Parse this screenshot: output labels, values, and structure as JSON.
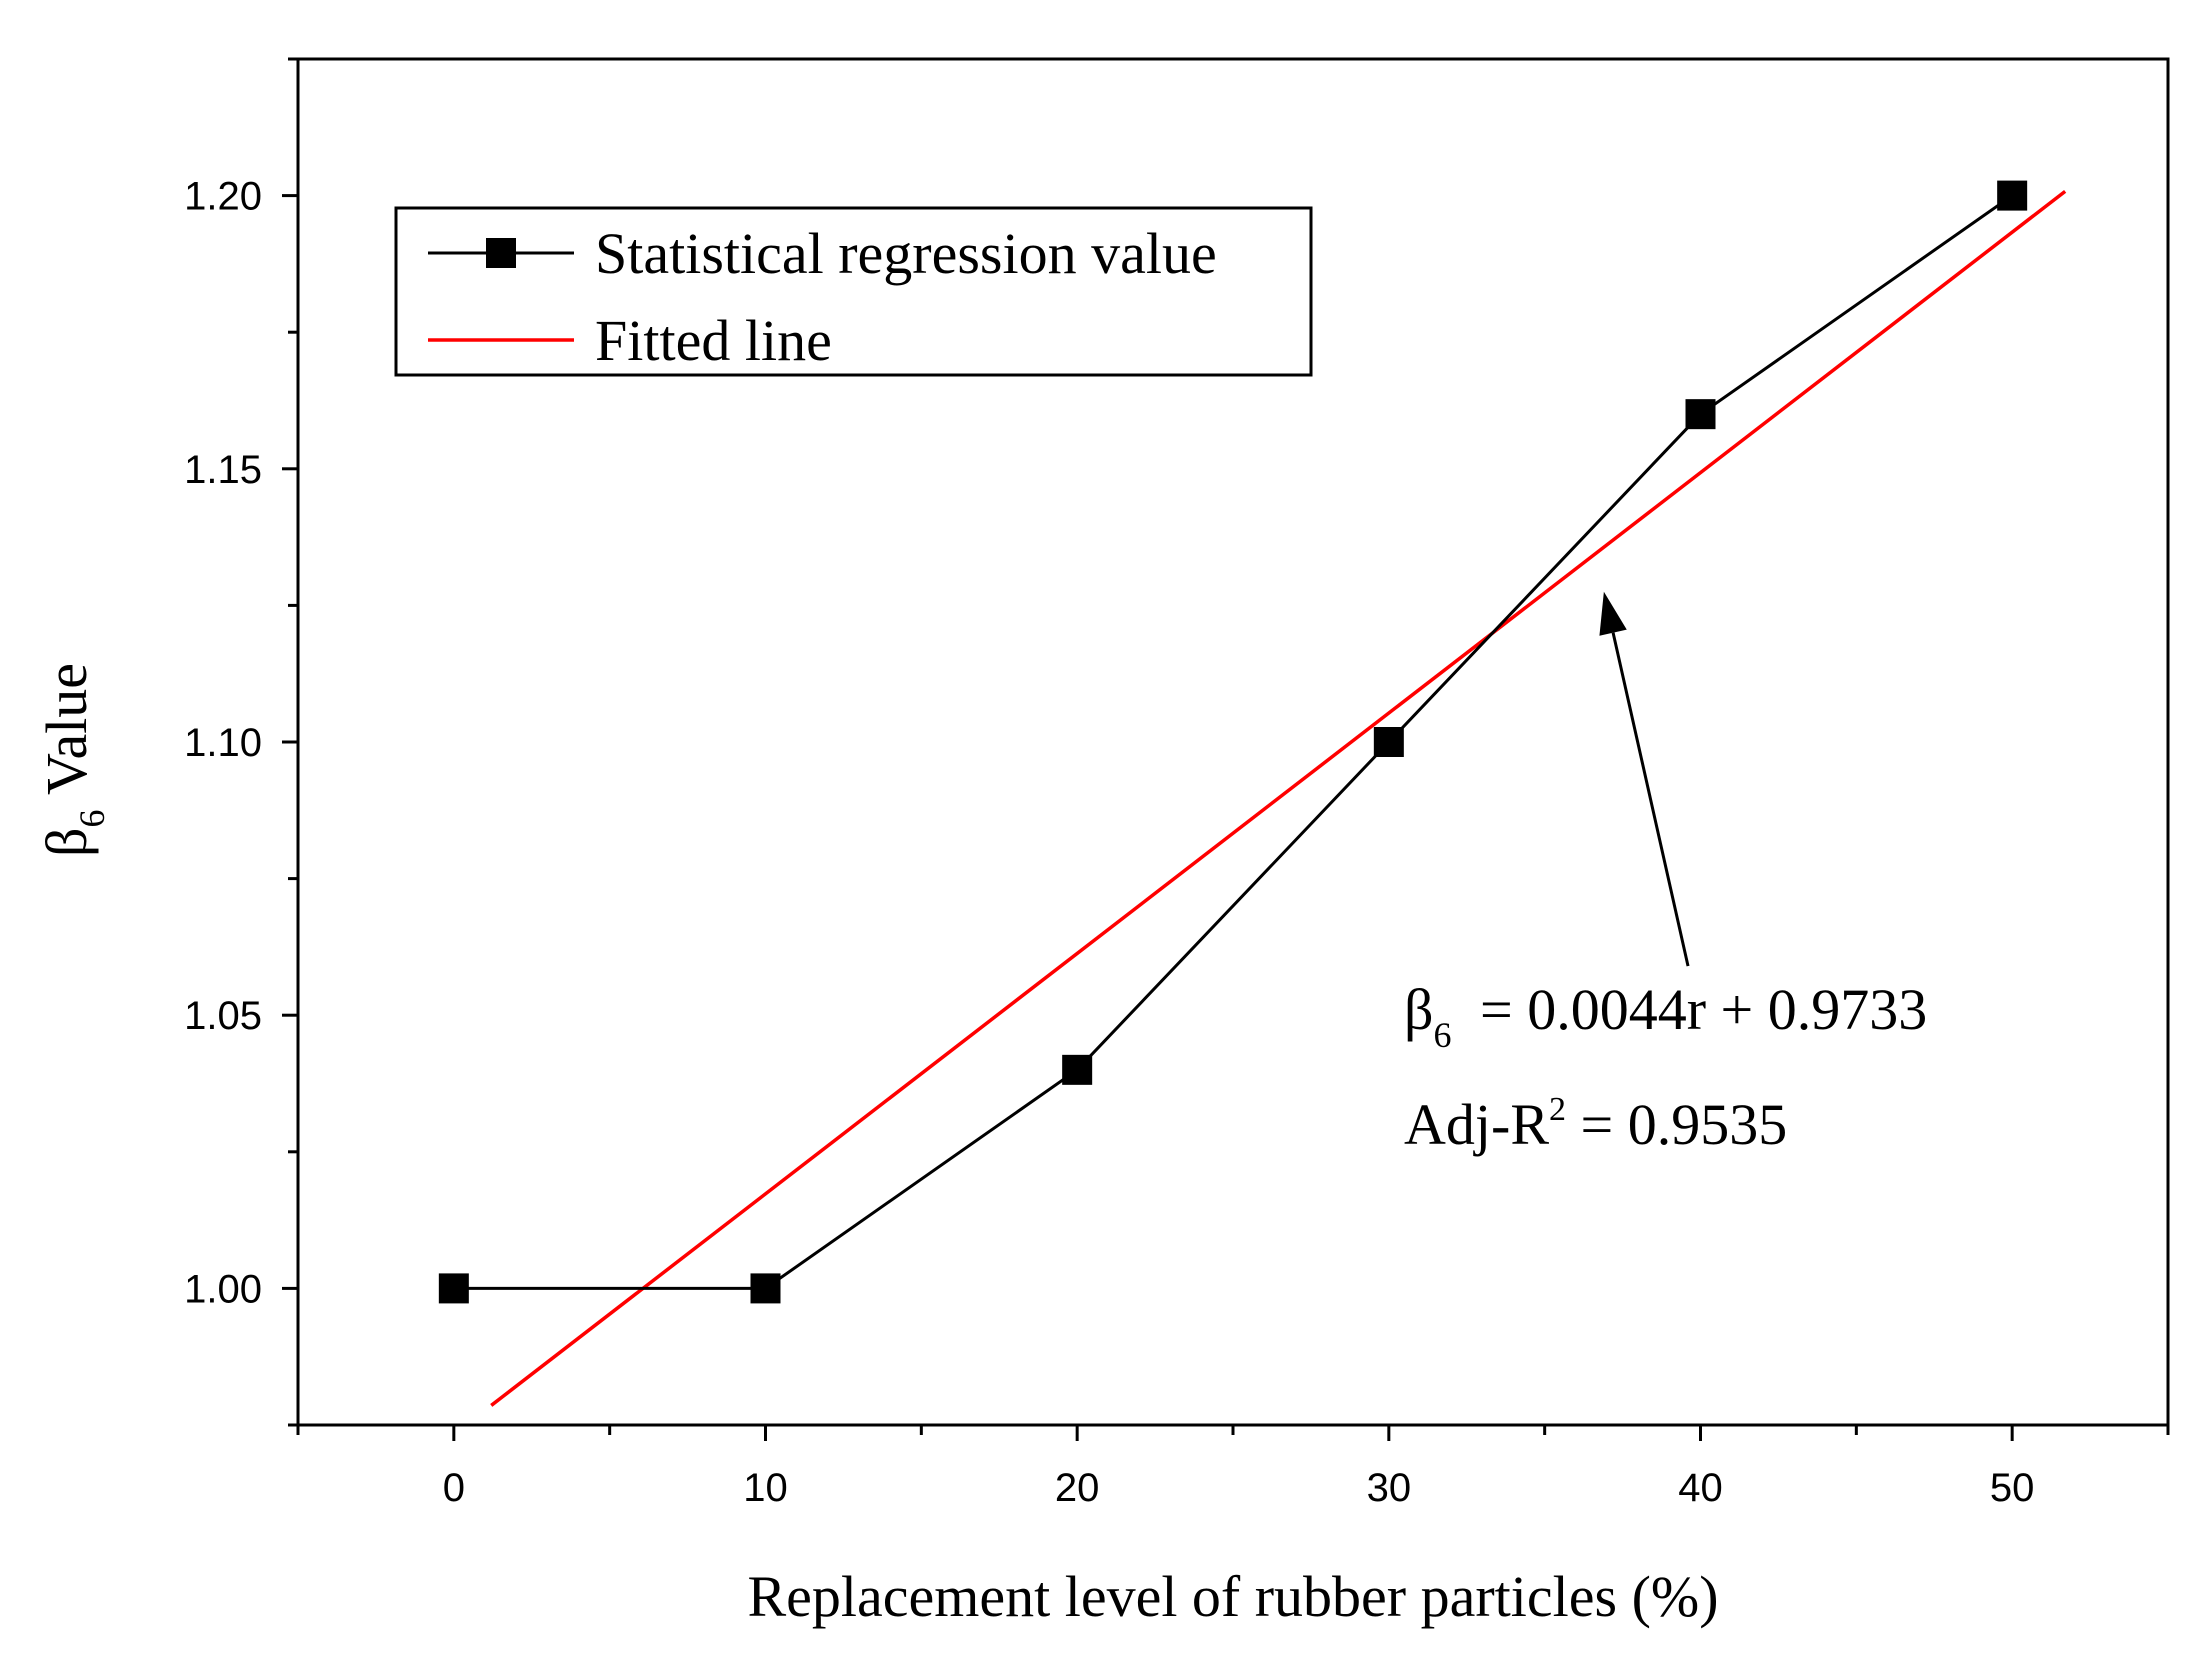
{
  "chart_data": {
    "type": "line",
    "title": "",
    "xlabel": "Replacement level of rubber particles (%)",
    "ylabel_symbol": "β",
    "ylabel_sub": "6",
    "ylabel_rest": " Value",
    "xlim": [
      -5,
      55
    ],
    "ylim": [
      0.975,
      1.225
    ],
    "x_major_ticks": [
      0,
      10,
      20,
      30,
      40,
      50
    ],
    "x_minor_ticks": [
      -5,
      5,
      15,
      25,
      35,
      45,
      55
    ],
    "x_tick_labels": [
      "0",
      "10",
      "20",
      "30",
      "40",
      "50"
    ],
    "y_major_ticks": [
      1.0,
      1.05,
      1.1,
      1.15,
      1.2
    ],
    "y_minor_ticks": [
      0.975,
      1.025,
      1.075,
      1.125,
      1.175,
      1.225
    ],
    "y_tick_labels": [
      "1.00",
      "1.05",
      "1.10",
      "1.15",
      "1.20"
    ],
    "grid": false,
    "legend_position": "top-left",
    "series": [
      {
        "name": "Statistical regression value",
        "style": "line-square-markers",
        "color": "#000000",
        "x": [
          0,
          10,
          20,
          30,
          40,
          50
        ],
        "y": [
          1.0,
          1.0,
          1.04,
          1.1,
          1.16,
          1.2
        ]
      },
      {
        "name": "Fitted line",
        "style": "line",
        "color": "#ff0000",
        "slope": 0.0044,
        "intercept": 0.9733,
        "x_range": [
          1.2,
          51.7
        ]
      }
    ],
    "annotation": {
      "eq_symbol": "β",
      "eq_sub": "6",
      "eq_rest": " = 0.0044r + 0.9733",
      "r2_prefix": "Adj-R",
      "r2_sup": "2",
      "r2_rest": " = 0.9535",
      "arrow_tip": {
        "x": 36.9,
        "y": 1.1275
      },
      "arrow_tail": {
        "x": 39.6,
        "y": 1.059
      }
    }
  }
}
